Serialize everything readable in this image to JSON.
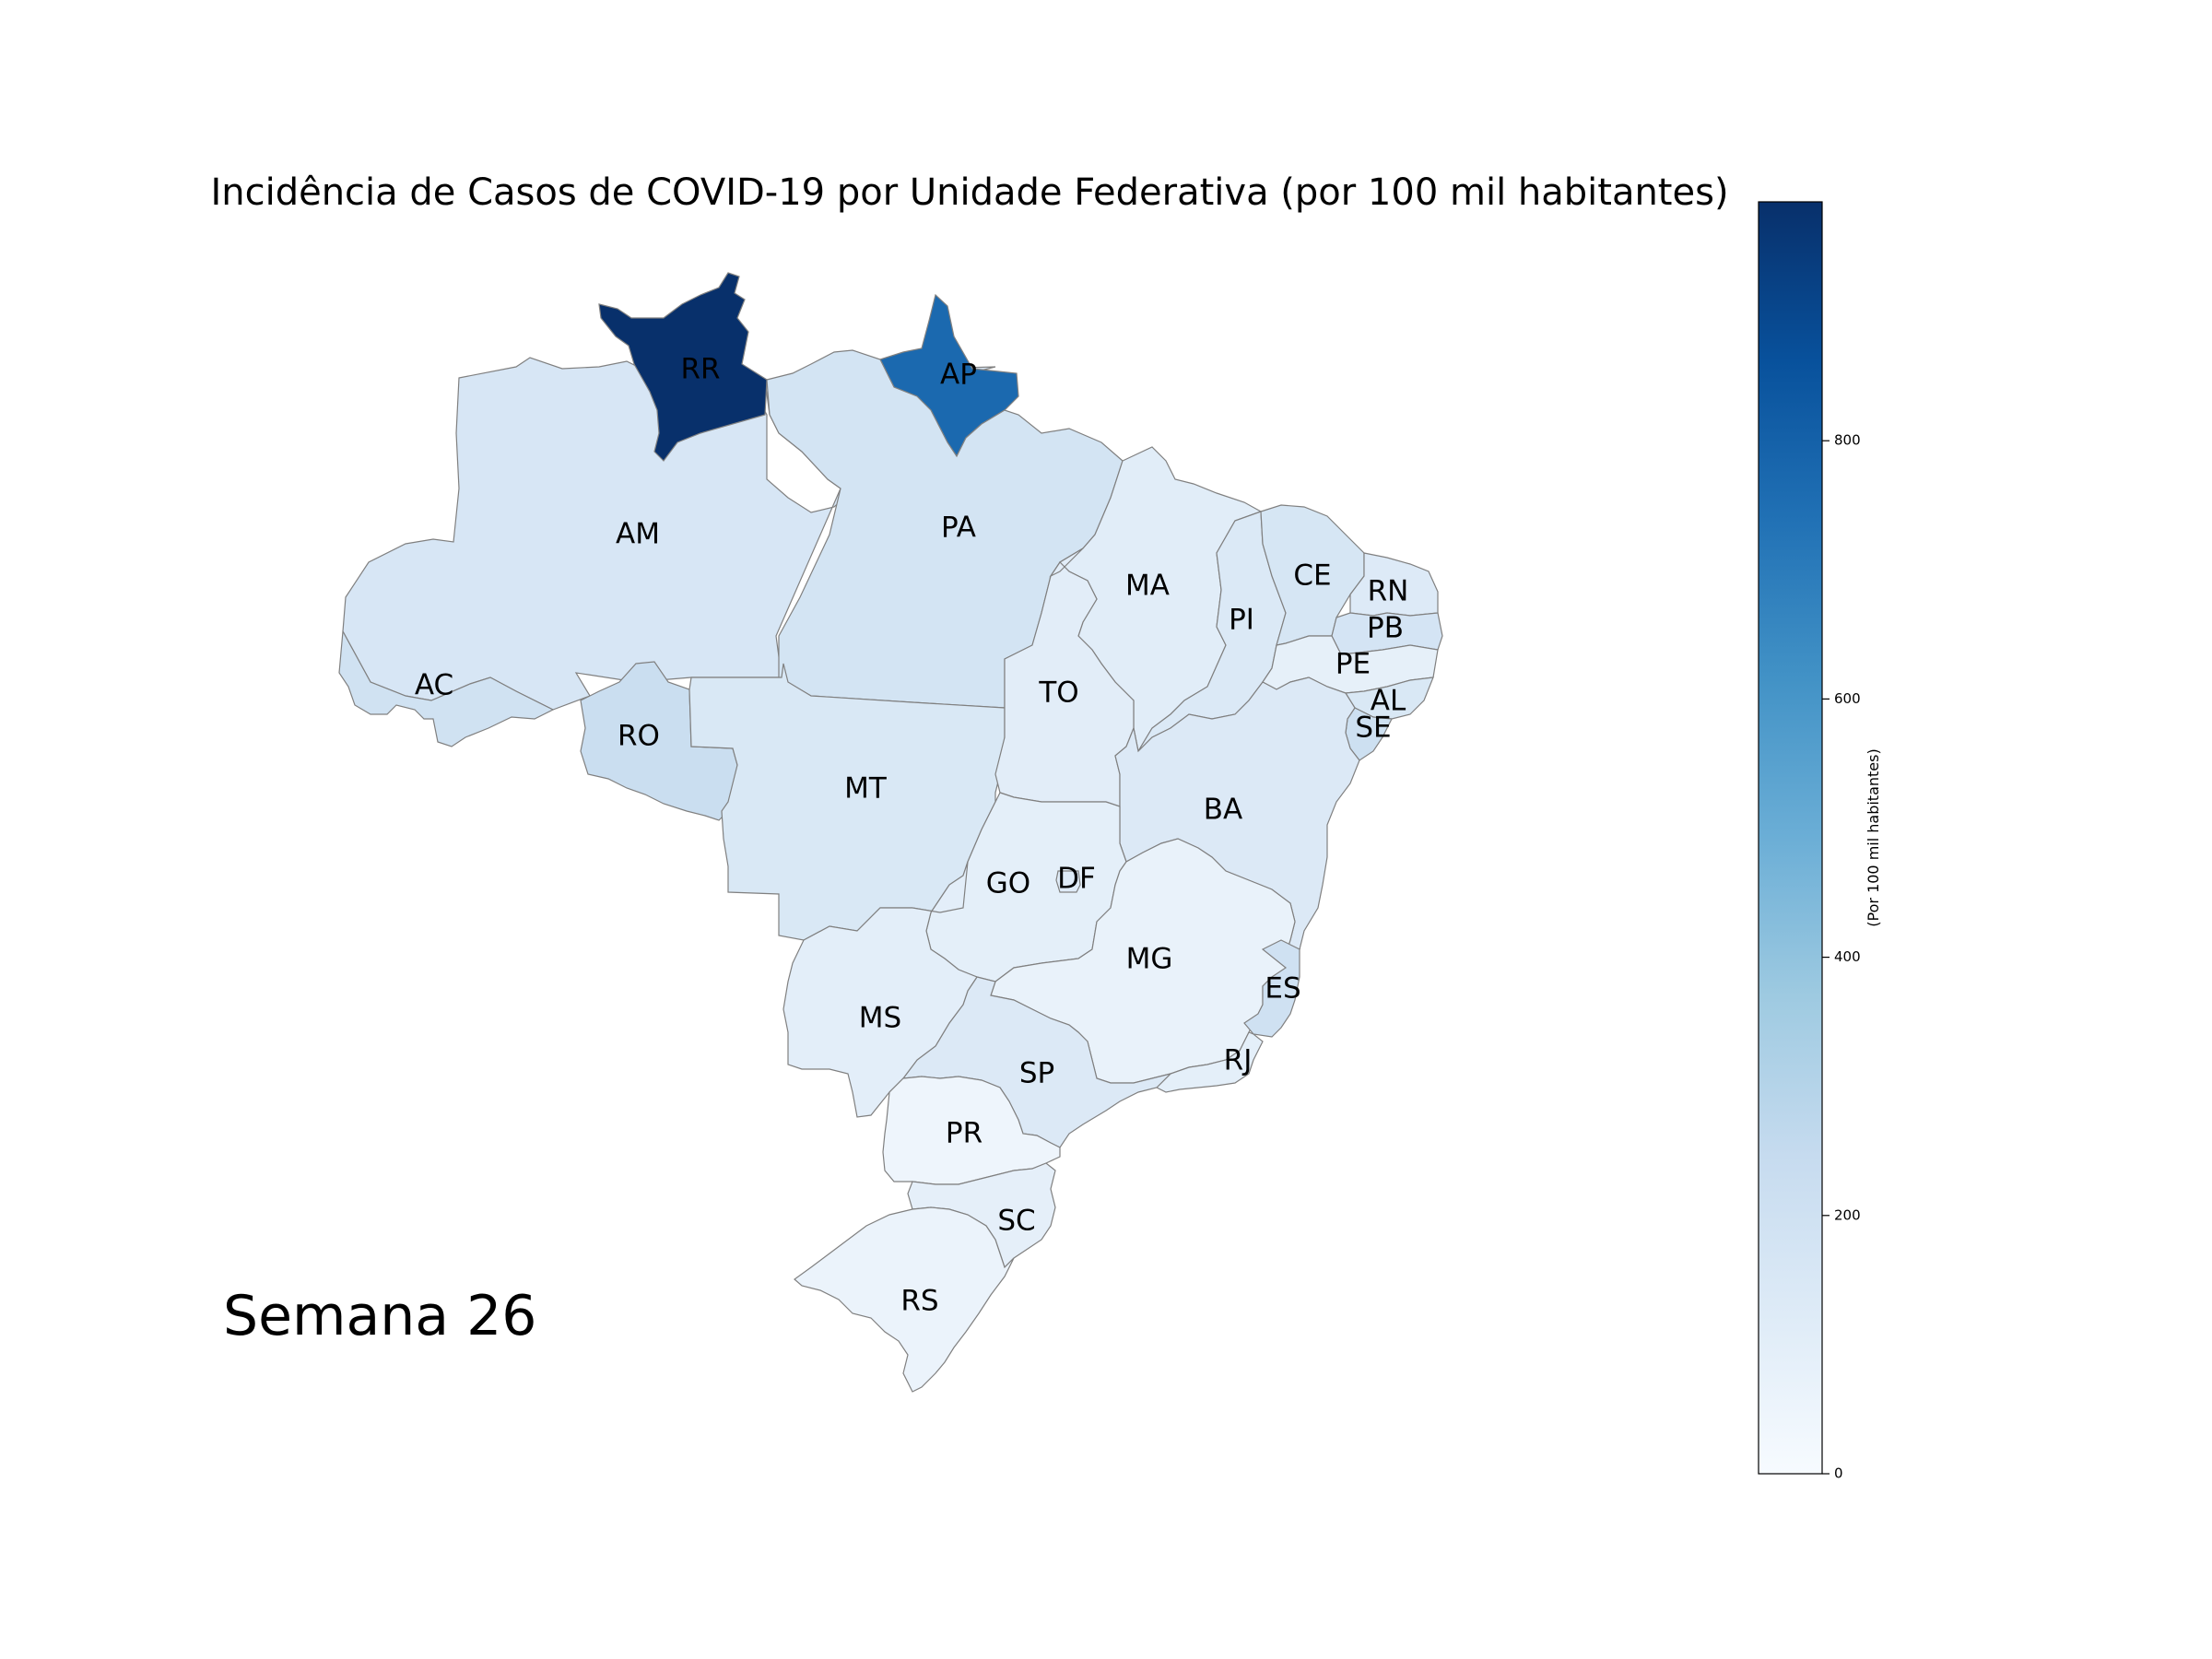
{
  "title": "Incidência de Casos de COVID-19 por Unidade Federativa (por 100 mil habitantes)",
  "week_label": "Semana 26",
  "colorbar": {
    "label": "(Por 100 mil habitantes)",
    "min": 0,
    "max": 985,
    "ticks": [
      0,
      200,
      400,
      600,
      800
    ],
    "colormap": "Blues",
    "color_stops": [
      "#f7fbff",
      "#deebf7",
      "#c6dbef",
      "#9ecae1",
      "#6baed6",
      "#4292c6",
      "#2171b5",
      "#08519c",
      "#08306b"
    ]
  },
  "states": [
    {
      "code": "RR",
      "value": 985
    },
    {
      "code": "AP",
      "value": 770
    },
    {
      "code": "AM",
      "value": 160
    },
    {
      "code": "PA",
      "value": 180
    },
    {
      "code": "AC",
      "value": 195
    },
    {
      "code": "RO",
      "value": 225
    },
    {
      "code": "MT",
      "value": 150
    },
    {
      "code": "MA",
      "value": 110
    },
    {
      "code": "TO",
      "value": 105
    },
    {
      "code": "PI",
      "value": 140
    },
    {
      "code": "CE",
      "value": 165
    },
    {
      "code": "RN",
      "value": 130
    },
    {
      "code": "PB",
      "value": 175
    },
    {
      "code": "PE",
      "value": 85
    },
    {
      "code": "AL",
      "value": 150
    },
    {
      "code": "SE",
      "value": 210
    },
    {
      "code": "BA",
      "value": 135
    },
    {
      "code": "GO",
      "value": 95
    },
    {
      "code": "DF",
      "value": 120
    },
    {
      "code": "MG",
      "value": 70
    },
    {
      "code": "ES",
      "value": 200
    },
    {
      "code": "RJ",
      "value": 95
    },
    {
      "code": "SP",
      "value": 135
    },
    {
      "code": "MS",
      "value": 100
    },
    {
      "code": "PR",
      "value": 45
    },
    {
      "code": "SC",
      "value": 90
    },
    {
      "code": "RS",
      "value": 60
    }
  ]
}
